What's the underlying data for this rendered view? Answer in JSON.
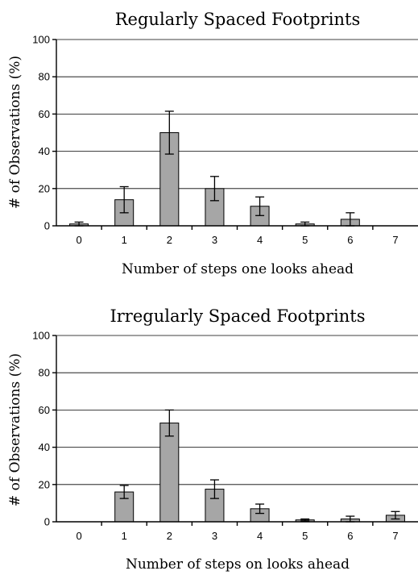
{
  "chart_data": [
    {
      "type": "bar",
      "title": "Regularly Spaced Footprints",
      "xlabel": "Number of steps one looks ahead",
      "ylabel": "# of Observations (%)",
      "ylim": [
        0,
        100
      ],
      "yticks": [
        "0",
        "20",
        "40",
        "60",
        "80",
        "100"
      ],
      "grid": true,
      "categories": [
        "0",
        "1",
        "2",
        "3",
        "4",
        "5",
        "6",
        "7"
      ],
      "values": [
        1,
        14,
        50,
        20,
        10.5,
        1,
        3.5,
        0
      ],
      "errors": [
        1,
        7,
        11.5,
        6.5,
        5,
        1,
        3.5,
        0
      ]
    },
    {
      "type": "bar",
      "title": "Irregularly Spaced Footprints",
      "xlabel": "Number of steps on looks ahead",
      "ylabel": "# of Observations (%)",
      "ylim": [
        0,
        100
      ],
      "yticks": [
        "0",
        "20",
        "40",
        "60",
        "80",
        "100"
      ],
      "grid": true,
      "categories": [
        "0",
        "1",
        "2",
        "3",
        "4",
        "5",
        "6",
        "7"
      ],
      "values": [
        0,
        16,
        53,
        17.5,
        7,
        1,
        1.5,
        3.5
      ],
      "errors": [
        0,
        3.5,
        7,
        5,
        2.5,
        0.5,
        1.5,
        2
      ]
    }
  ]
}
